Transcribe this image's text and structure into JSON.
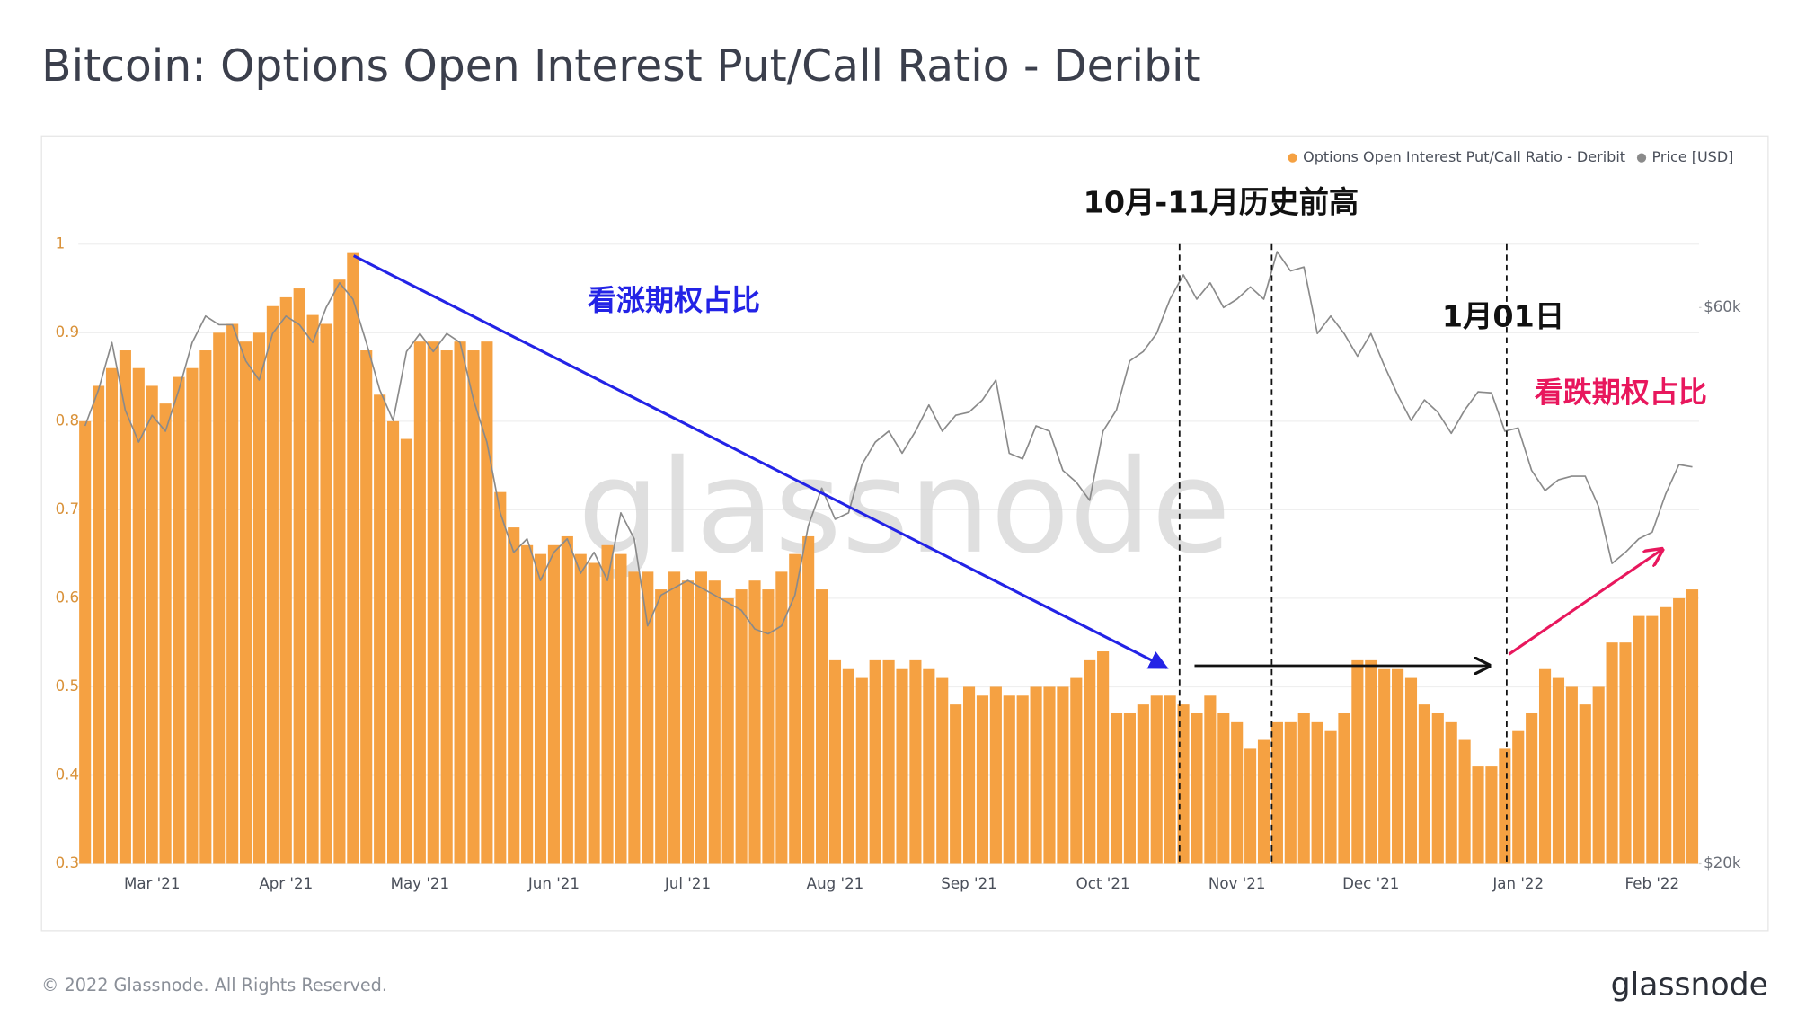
{
  "chart_data": {
    "type": "bar_line",
    "title": "Bitcoin: Options Open Interest Put/Call Ratio - Deribit",
    "watermark": "glassnode",
    "footer": "© 2022 Glassnode. All Rights Reserved.",
    "logo": "glassnode",
    "legend": "top-right",
    "grid": true,
    "categories": [
      null,
      null,
      null,
      null,
      null,
      "Mar '21",
      null,
      null,
      null,
      null,
      null,
      null,
      null,
      null,
      null,
      "Apr '21",
      null,
      null,
      null,
      null,
      null,
      null,
      null,
      null,
      null,
      "May '21",
      null,
      null,
      null,
      null,
      null,
      null,
      null,
      null,
      null,
      "Jun '21",
      null,
      null,
      null,
      null,
      null,
      null,
      null,
      null,
      null,
      "Jul '21",
      null,
      null,
      null,
      null,
      null,
      null,
      null,
      null,
      null,
      null,
      "Aug '21",
      null,
      null,
      null,
      null,
      null,
      null,
      null,
      null,
      null,
      "Sep '21",
      null,
      null,
      null,
      null,
      null,
      null,
      null,
      null,
      null,
      "Oct '21",
      null,
      null,
      null,
      null,
      null,
      null,
      null,
      null,
      null,
      "Nov '21",
      null,
      null,
      null,
      null,
      null,
      null,
      null,
      null,
      null,
      "Dec '21",
      null,
      null,
      null,
      null,
      null,
      null,
      null,
      null,
      null,
      null,
      "Jan '22",
      null,
      null,
      null,
      null,
      null,
      null,
      null,
      null,
      null,
      "Feb '22",
      null,
      null,
      null
    ],
    "ylim": [
      0.3,
      1
    ],
    "yticks": [
      0.3,
      0.4,
      0.5,
      0.6,
      0.7,
      0.8,
      0.9,
      1
    ],
    "y2lim": [
      20000,
      68000
    ],
    "y2log": true,
    "y2ticks": [
      {
        "value": 20000,
        "label": "$20k"
      },
      {
        "value": 60000,
        "label": "$60k"
      }
    ],
    "series": [
      {
        "name": "Options Open Interest Put/Call Ratio - Deribit",
        "type": "bar",
        "color": "#f5a142",
        "values": [
          0.8,
          0.84,
          0.86,
          0.88,
          0.86,
          0.84,
          0.82,
          0.85,
          0.86,
          0.88,
          0.9,
          0.91,
          0.89,
          0.9,
          0.93,
          0.94,
          0.95,
          0.92,
          0.91,
          0.96,
          0.99,
          0.88,
          0.83,
          0.8,
          0.78,
          0.89,
          0.89,
          0.88,
          0.89,
          0.88,
          0.89,
          0.72,
          0.68,
          0.66,
          0.65,
          0.66,
          0.67,
          0.65,
          0.64,
          0.66,
          0.65,
          0.63,
          0.63,
          0.61,
          0.63,
          0.62,
          0.63,
          0.62,
          0.6,
          0.61,
          0.62,
          0.61,
          0.63,
          0.65,
          0.67,
          0.61,
          0.53,
          0.52,
          0.51,
          0.53,
          0.53,
          0.52,
          0.53,
          0.52,
          0.51,
          0.48,
          0.5,
          0.49,
          0.5,
          0.49,
          0.49,
          0.5,
          0.5,
          0.5,
          0.51,
          0.53,
          0.54,
          0.47,
          0.47,
          0.48,
          0.49,
          0.49,
          0.48,
          0.47,
          0.49,
          0.47,
          0.46,
          0.43,
          0.44,
          0.46,
          0.46,
          0.47,
          0.46,
          0.45,
          0.47,
          0.53,
          0.53,
          0.52,
          0.52,
          0.51,
          0.48,
          0.47,
          0.46,
          0.44,
          0.41,
          0.41,
          0.43,
          0.45,
          0.47,
          0.52,
          0.51,
          0.5,
          0.48,
          0.5,
          0.55,
          0.55,
          0.58,
          0.58,
          0.59,
          0.6,
          0.61
        ]
      },
      {
        "name": "Price [USD]",
        "type": "line",
        "axis": "y2",
        "color": "#8a8a8a",
        "values": [
          47500,
          51000,
          56000,
          49000,
          46000,
          48500,
          47000,
          51000,
          56000,
          59000,
          58000,
          58000,
          54000,
          52000,
          57000,
          59000,
          58000,
          56000,
          60000,
          63000,
          61000,
          56000,
          51000,
          48000,
          55000,
          57000,
          55000,
          57000,
          56000,
          50000,
          46000,
          40000,
          37000,
          38000,
          35000,
          37000,
          38000,
          35500,
          37000,
          35000,
          40000,
          38000,
          32000,
          34000,
          34500,
          35000,
          34500,
          34000,
          33500,
          33000,
          31800,
          31500,
          32000,
          34000,
          39000,
          42000,
          39500,
          40000,
          44000,
          46000,
          47000,
          45000,
          47000,
          49500,
          47000,
          48500,
          48800,
          50000,
          52000,
          45000,
          44500,
          47500,
          47000,
          43500,
          42500,
          41000,
          47000,
          49000,
          54000,
          55000,
          57000,
          61000,
          64000,
          61000,
          63000,
          60000,
          61000,
          62500,
          61000,
          67000,
          64500,
          65000,
          57000,
          59000,
          57000,
          54500,
          57000,
          53500,
          50500,
          48000,
          50000,
          48800,
          46800,
          49000,
          50800,
          50700,
          47000,
          47300,
          43500,
          41800,
          42700,
          43000,
          43000,
          40500,
          36200,
          37000,
          38000,
          38500,
          41500,
          44000,
          43800
        ]
      }
    ],
    "annotations": [
      {
        "text": "10月-11月历史前高",
        "color": "#111111"
      },
      {
        "text": "1月01日",
        "color": "#111111"
      },
      {
        "text": "看涨期权占比",
        "color": "#2323e6"
      },
      {
        "text": "看跌期权占比",
        "color": "#e8175d"
      }
    ]
  }
}
